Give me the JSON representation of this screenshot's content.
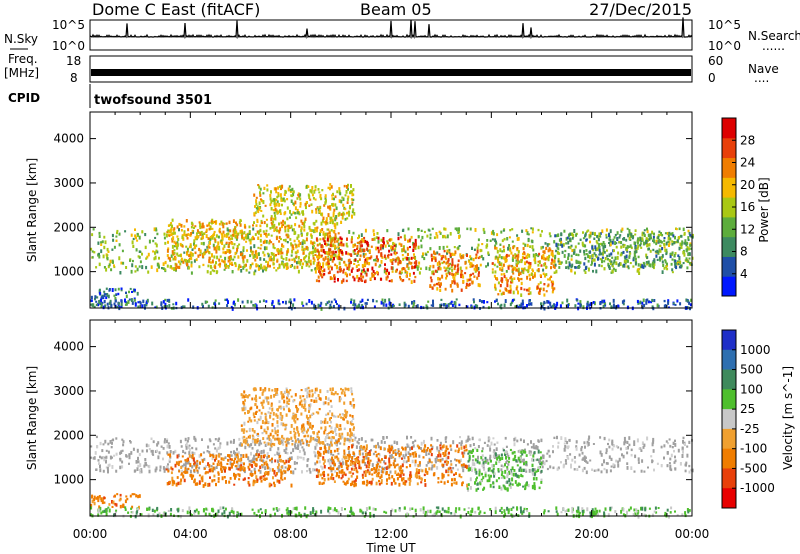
{
  "header": {
    "station": "Dome C East (fitACF)",
    "beam": "Beam 05",
    "date": "27/Dec/2015"
  },
  "noise_panel": {
    "left_label": "N.Sky",
    "right_label": "N.Search",
    "left_ticks": [
      "10^5",
      "10^0"
    ],
    "right_ticks": [
      "10^5",
      "10^0"
    ]
  },
  "freq_panel": {
    "left_label_1": "Freq.",
    "left_label_2": "[MHz]",
    "left_ticks": [
      "18",
      "8"
    ],
    "right_label": "Nave",
    "right_ticks": [
      "60",
      "0"
    ]
  },
  "cpid_panel": {
    "label": "CPID",
    "program": "twofsound 3501"
  },
  "x_axis": {
    "label": "Time UT",
    "ticks": [
      "00:00",
      "04:00",
      "08:00",
      "12:00",
      "16:00",
      "20:00",
      "00:00"
    ]
  },
  "colors": {
    "power_scale": [
      "#0018ff",
      "#1f4fa7",
      "#3d8a60",
      "#5dad3c",
      "#a9c814",
      "#f5b900",
      "#f07d00",
      "#e8400a",
      "#dd0000"
    ],
    "velocity_scale": [
      "#1f2fc8",
      "#2e6fb0",
      "#3f8a5c",
      "#4fbf2e",
      "#c8c8c8",
      "#f0a030",
      "#f07d00",
      "#e8400a",
      "#e80000"
    ],
    "ground_scatter": "#a0a0a0"
  },
  "chart_data": [
    {
      "type": "heatmap",
      "name": "Power",
      "xlabel": "",
      "ylabel": "Slant Range [km]",
      "yticks": [
        1000,
        2000,
        3000,
        4000
      ],
      "ylim": [
        180,
        4600
      ],
      "x_range_hours": [
        0,
        24
      ],
      "colorbar": {
        "label": "Power [dB]",
        "ticks": [
          4,
          8,
          12,
          16,
          20,
          24,
          28
        ],
        "range": [
          0,
          32
        ]
      },
      "echo_regions": [
        {
          "t_start": 0.0,
          "t_end": 24.0,
          "r_low": 1000,
          "r_high": 2000,
          "value": 14
        },
        {
          "t_start": 0.0,
          "t_end": 2.0,
          "r_low": 250,
          "r_high": 650,
          "value": 6
        },
        {
          "t_start": 3.0,
          "t_end": 10.0,
          "r_low": 1100,
          "r_high": 2200,
          "value": 20
        },
        {
          "t_start": 6.5,
          "t_end": 10.5,
          "r_low": 2200,
          "r_high": 3000,
          "value": 18
        },
        {
          "t_start": 9.0,
          "t_end": 13.0,
          "r_low": 800,
          "r_high": 1800,
          "value": 26
        },
        {
          "t_start": 13.5,
          "t_end": 15.5,
          "r_low": 600,
          "r_high": 1500,
          "value": 24
        },
        {
          "t_start": 16.0,
          "t_end": 18.5,
          "r_low": 500,
          "r_high": 1600,
          "value": 22
        },
        {
          "t_start": 18.5,
          "t_end": 24.0,
          "r_low": 1100,
          "r_high": 1900,
          "value": 10
        },
        {
          "t_start": 0.0,
          "t_end": 24.0,
          "r_low": 200,
          "r_high": 400,
          "value": 5
        }
      ]
    },
    {
      "type": "heatmap",
      "name": "Velocity",
      "xlabel": "Time UT",
      "ylabel": "Slant Range [km]",
      "yticks": [
        1000,
        2000,
        3000,
        4000
      ],
      "ylim": [
        180,
        4600
      ],
      "x_range_hours": [
        0,
        24
      ],
      "colorbar": {
        "label": "Velocity [m s^-1]",
        "ticks": [
          1000,
          500,
          100,
          25,
          -25,
          -100,
          -500,
          -1000
        ]
      },
      "echo_regions": [
        {
          "t_start": 0.0,
          "t_end": 24.0,
          "r_low": 1200,
          "r_high": 2000,
          "value": 0,
          "note": "ground scatter"
        },
        {
          "t_start": 0.0,
          "t_end": 2.0,
          "r_low": 400,
          "r_high": 700,
          "value": -400
        },
        {
          "t_start": 3.0,
          "t_end": 8.0,
          "r_low": 900,
          "r_high": 1600,
          "value": -300
        },
        {
          "t_start": 6.0,
          "t_end": 10.5,
          "r_low": 1800,
          "r_high": 3100,
          "value": -120
        },
        {
          "t_start": 9.0,
          "t_end": 15.0,
          "r_low": 900,
          "r_high": 1800,
          "value": -250
        },
        {
          "t_start": 15.0,
          "t_end": 18.0,
          "r_low": 800,
          "r_high": 1700,
          "value": 120
        },
        {
          "t_start": 0.0,
          "t_end": 24.0,
          "r_low": 200,
          "r_high": 400,
          "value": 60
        }
      ]
    }
  ]
}
